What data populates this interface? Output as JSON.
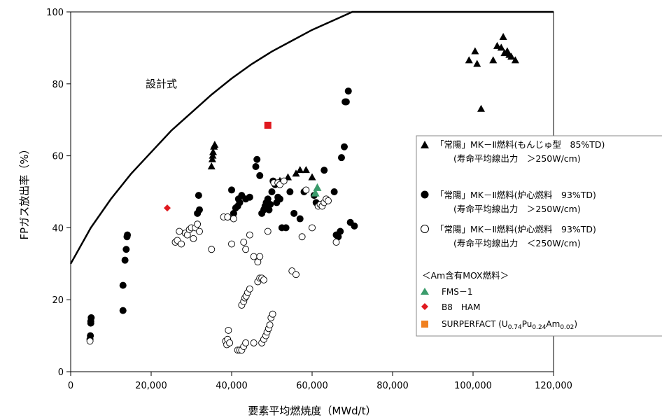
{
  "chart_data": {
    "type": "scatter",
    "xlabel": "要素平均燃焼度（MWd/t）",
    "ylabel": "FPガス放出率（%）",
    "xlim": [
      0,
      120000
    ],
    "ylim": [
      0,
      100
    ],
    "xticks": [
      "0",
      "20,000",
      "40,000",
      "60,000",
      "80,000",
      "100,000",
      "120,000"
    ],
    "yticks": [
      "0",
      "20",
      "40",
      "60",
      "80",
      "100"
    ],
    "grid": false,
    "legend_position": "right",
    "annotation": "設計式",
    "curve": {
      "name": "設計式",
      "x": [
        0,
        5000,
        10000,
        15000,
        20000,
        25000,
        30000,
        35000,
        40000,
        45000,
        50000,
        55000,
        60000,
        65000,
        70000,
        120000
      ],
      "y": [
        30,
        40,
        48,
        55,
        61,
        67,
        72,
        77,
        81.5,
        85.5,
        89,
        92,
        95,
        97.5,
        100,
        100
      ]
    },
    "legend": {
      "group_header": "＜Am含有MOX燃料＞",
      "entries": [
        {
          "label": "「常陽」MK－Ⅱ燃料(もんじゅ型　85%TD)",
          "sublabel": "(寿命平均線出力　＞250W/cm)"
        },
        {
          "label": "「常陽」MK－Ⅱ燃料(炉心燃料　93%TD)",
          "sublabel": "(寿命平均線出力　＞250W/cm)"
        },
        {
          "label": "「常陽」MK－Ⅱ燃料(炉心燃料　93%TD)",
          "sublabel": "(寿命平均線出力　＜250W/cm)"
        },
        {
          "label": "FMS－1"
        },
        {
          "label": "B8　HAM"
        },
        {
          "label": "SURPERFACT (U",
          "sub1": "0.74",
          "mid1": "Pu",
          "sub2": "0.24",
          "mid2": "Am",
          "sub3": "0.02",
          "end": ")"
        }
      ]
    },
    "colors": {
      "black": "#000000",
      "fms": "#3a9b6b",
      "b8": "#e0191f",
      "surperfact": "#e0191f",
      "surperfact_legend": "#f08020"
    },
    "series": [
      {
        "name": "「常陽」MK－Ⅱ燃料(もんじゅ型　85%TD)(寿命平均線出力　＞250W/cm)",
        "marker": "triangle-filled",
        "points": [
          [
            35000,
            57
          ],
          [
            35200,
            59
          ],
          [
            35400,
            61
          ],
          [
            35600,
            62.5
          ],
          [
            35800,
            63
          ],
          [
            35300,
            60
          ],
          [
            52000,
            53
          ],
          [
            54000,
            54
          ],
          [
            56000,
            55
          ],
          [
            57000,
            56
          ],
          [
            58500,
            56
          ],
          [
            60000,
            54
          ],
          [
            99000,
            86.5
          ],
          [
            100500,
            89
          ],
          [
            101000,
            85.5
          ],
          [
            102000,
            73
          ],
          [
            105000,
            86.5
          ],
          [
            106000,
            90.5
          ],
          [
            107000,
            90
          ],
          [
            107500,
            93
          ],
          [
            107800,
            88.5
          ],
          [
            108500,
            89
          ],
          [
            109000,
            88
          ],
          [
            109500,
            87.5
          ],
          [
            110500,
            86.5
          ]
        ]
      },
      {
        "name": "「常陽」MK－Ⅱ燃料(炉心燃料　93%TD)(寿命平均線出力　＞250W/cm)",
        "marker": "circle-filled",
        "points": [
          [
            4800,
            9
          ],
          [
            4900,
            10
          ],
          [
            5000,
            13.5
          ],
          [
            5000,
            14
          ],
          [
            5100,
            15
          ],
          [
            13000,
            17
          ],
          [
            13000,
            24
          ],
          [
            13500,
            31
          ],
          [
            13800,
            34
          ],
          [
            14000,
            37.5
          ],
          [
            14100,
            38
          ],
          [
            31500,
            44
          ],
          [
            32000,
            45
          ],
          [
            31800,
            49
          ],
          [
            39000,
            43
          ],
          [
            40000,
            50.5
          ],
          [
            40500,
            44
          ],
          [
            41000,
            45.5
          ],
          [
            41500,
            46
          ],
          [
            42000,
            47
          ],
          [
            41700,
            48
          ],
          [
            42500,
            49
          ],
          [
            43500,
            48
          ],
          [
            44500,
            48.5
          ],
          [
            46000,
            57
          ],
          [
            46300,
            59
          ],
          [
            47000,
            54.5
          ],
          [
            47500,
            44
          ],
          [
            48000,
            45
          ],
          [
            48300,
            46
          ],
          [
            48600,
            47
          ],
          [
            49000,
            48
          ],
          [
            49300,
            45
          ],
          [
            49600,
            46.5
          ],
          [
            50000,
            50
          ],
          [
            50300,
            53
          ],
          [
            50800,
            52
          ],
          [
            51200,
            47
          ],
          [
            51500,
            48.5
          ],
          [
            52000,
            48
          ],
          [
            52500,
            40
          ],
          [
            53500,
            40
          ],
          [
            54500,
            50
          ],
          [
            55500,
            44
          ],
          [
            57000,
            42.5
          ],
          [
            58000,
            50
          ],
          [
            60500,
            49
          ],
          [
            61000,
            47
          ],
          [
            63000,
            56
          ],
          [
            65500,
            50
          ],
          [
            66000,
            38
          ],
          [
            66500,
            37.5
          ],
          [
            67000,
            39
          ],
          [
            67300,
            59.5
          ],
          [
            68000,
            62.5
          ],
          [
            68200,
            75
          ],
          [
            68500,
            75
          ],
          [
            69000,
            78
          ],
          [
            69500,
            41.5
          ],
          [
            70500,
            40.5
          ]
        ]
      },
      {
        "name": "「常陽」MK－Ⅱ燃料(炉心燃料　93%TD)(寿命平均線出力　＜250W/cm)",
        "marker": "circle-open",
        "points": [
          [
            4800,
            8.5
          ],
          [
            26000,
            36
          ],
          [
            26500,
            36.5
          ],
          [
            27000,
            39
          ],
          [
            27500,
            35.5
          ],
          [
            28500,
            38.5
          ],
          [
            29000,
            38
          ],
          [
            29500,
            39.5
          ],
          [
            30000,
            40
          ],
          [
            30500,
            37
          ],
          [
            31000,
            40
          ],
          [
            31500,
            41
          ],
          [
            32000,
            39
          ],
          [
            35000,
            34
          ],
          [
            38000,
            43
          ],
          [
            39000,
            43
          ],
          [
            40000,
            35.5
          ],
          [
            40500,
            42.5
          ],
          [
            43000,
            36
          ],
          [
            43500,
            34
          ],
          [
            44500,
            38
          ],
          [
            45500,
            32
          ],
          [
            46500,
            30.5
          ],
          [
            47000,
            32
          ],
          [
            49000,
            39
          ],
          [
            50500,
            52.5
          ],
          [
            51500,
            52.5
          ],
          [
            52000,
            52
          ],
          [
            53000,
            53
          ],
          [
            55000,
            28
          ],
          [
            56000,
            27
          ],
          [
            57500,
            37.5
          ],
          [
            58500,
            50.5
          ],
          [
            60000,
            40
          ],
          [
            61500,
            46
          ],
          [
            62000,
            46.5
          ],
          [
            62500,
            46
          ],
          [
            63000,
            47
          ],
          [
            63500,
            48
          ],
          [
            64000,
            47.5
          ],
          [
            66000,
            36
          ],
          [
            38500,
            8.5
          ],
          [
            38800,
            7.5
          ],
          [
            39000,
            9
          ],
          [
            39200,
            11.5
          ],
          [
            39500,
            8
          ],
          [
            41500,
            6
          ],
          [
            42000,
            6
          ],
          [
            42500,
            6
          ],
          [
            43000,
            7
          ],
          [
            43500,
            8
          ],
          [
            45500,
            8
          ],
          [
            42500,
            18.5
          ],
          [
            43000,
            19.5
          ],
          [
            43300,
            20.5
          ],
          [
            43600,
            21
          ],
          [
            44000,
            22
          ],
          [
            44500,
            23
          ],
          [
            46500,
            25
          ],
          [
            47000,
            26
          ],
          [
            47500,
            26
          ],
          [
            48000,
            25.5
          ],
          [
            47500,
            8
          ],
          [
            48000,
            9
          ],
          [
            48500,
            10
          ],
          [
            48800,
            11
          ],
          [
            49200,
            12
          ],
          [
            49500,
            13
          ],
          [
            49800,
            15
          ],
          [
            50200,
            16
          ]
        ]
      },
      {
        "name": "FMS－1",
        "marker": "triangle-green",
        "points": [
          [
            60800,
            49.5
          ],
          [
            61300,
            51
          ]
        ]
      },
      {
        "name": "B8　HAM",
        "marker": "diamond-red",
        "points": [
          [
            24000,
            45.5
          ]
        ]
      },
      {
        "name": "SURPERFACT (U0.74Pu0.24Am0.02)",
        "marker": "square-red",
        "points": [
          [
            49000,
            68.5
          ]
        ]
      }
    ]
  }
}
